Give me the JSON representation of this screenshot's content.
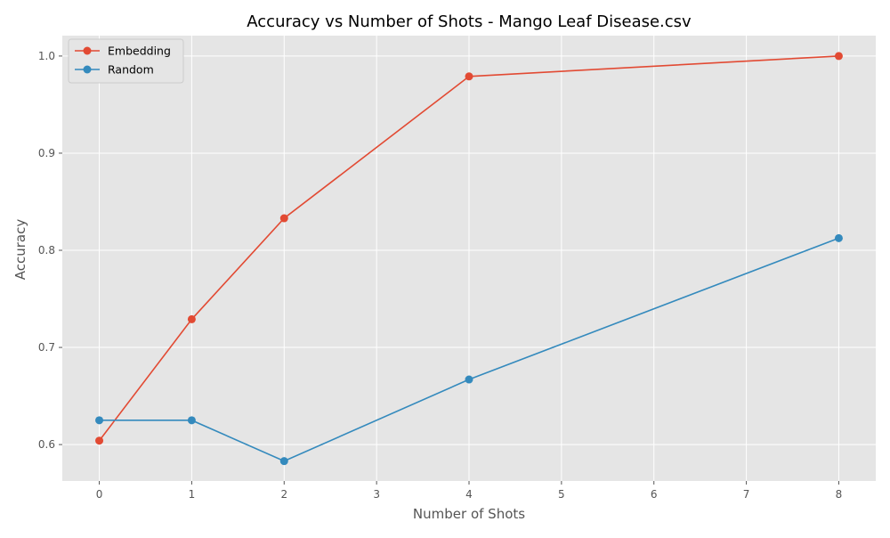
{
  "chart_data": {
    "type": "line",
    "title": "Accuracy vs Number of Shots - Mango Leaf Disease.csv",
    "xlabel": "Number of Shots",
    "ylabel": "Accuracy",
    "x": [
      0,
      1,
      2,
      4,
      8
    ],
    "xlim": [
      -0.4,
      8.4
    ],
    "ylim": [
      0.5625,
      1.021
    ],
    "x_ticks": [
      "0",
      "1",
      "2",
      "3",
      "4",
      "5",
      "6",
      "7",
      "8"
    ],
    "y_ticks": [
      "0.6",
      "0.7",
      "0.8",
      "0.9",
      "1.0"
    ],
    "grid": true,
    "legend_position": "top-left",
    "background_color": "#e5e5e5",
    "grid_color": "#ffffff",
    "series": [
      {
        "name": "Embedding",
        "color": "#e24a33",
        "values": [
          0.604,
          0.729,
          0.833,
          0.979,
          1.0
        ]
      },
      {
        "name": "Random",
        "color": "#348abd",
        "values": [
          0.625,
          0.625,
          0.583,
          0.667,
          0.8125
        ]
      }
    ]
  }
}
